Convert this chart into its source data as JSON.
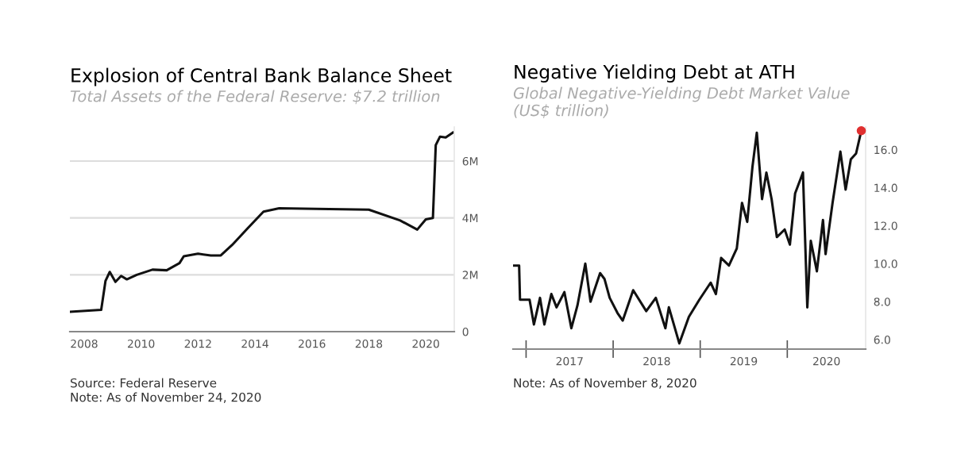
{
  "chart_data": [
    {
      "type": "line",
      "title": "Explosion of Central Bank Balance Sheet",
      "subtitle": "Total Assets of the Federal Reserve: $7.2 trillion",
      "x": [
        2007.5,
        2008.6,
        2008.75,
        2008.9,
        2009.1,
        2009.3,
        2009.5,
        2009.85,
        2010.4,
        2010.9,
        2011.35,
        2011.5,
        2012.0,
        2012.45,
        2012.8,
        2013.2,
        2013.75,
        2014.3,
        2014.85,
        2016.15,
        2018.0,
        2019.1,
        2019.7,
        2020.0,
        2020.25,
        2020.35,
        2020.5,
        2020.7,
        2020.95
      ],
      "series": [
        {
          "color": "#111111",
          "values": [
            0.7,
            0.77,
            1.78,
            2.1,
            1.75,
            1.96,
            1.84,
            2.0,
            2.18,
            2.16,
            2.41,
            2.65,
            2.74,
            2.68,
            2.68,
            3.05,
            3.64,
            4.22,
            4.34,
            4.32,
            4.29,
            3.91,
            3.59,
            3.95,
            4.0,
            6.56,
            6.86,
            6.83,
            7.0
          ]
        }
      ],
      "xlim": [
        2007.5,
        2021
      ],
      "ylim": [
        0,
        7.2
      ],
      "xticks": [
        2008,
        2010,
        2012,
        2014,
        2016,
        2018,
        2020
      ],
      "yticks": [
        0,
        {
          "value": 2,
          "label": "2M"
        },
        {
          "value": 4,
          "label": "4M"
        },
        {
          "value": 6,
          "label": "6M"
        }
      ],
      "grid": "y",
      "annotations": [
        "Source: Federal Reserve",
        "Note: As of November 24, 2020"
      ]
    },
    {
      "type": "line",
      "title": "Negative Yielding Debt at ATH",
      "subtitle": "Global Negative-Yielding Debt Market Value\n(US$ trillion)",
      "x": [
        2016.85,
        2016.92,
        2016.93,
        2017.04,
        2017.09,
        2017.16,
        2017.21,
        2017.29,
        2017.35,
        2017.44,
        2017.52,
        2017.59,
        2017.68,
        2017.74,
        2017.85,
        2017.9,
        2017.96,
        2018.05,
        2018.11,
        2018.23,
        2018.38,
        2018.49,
        2018.6,
        2018.64,
        2018.76,
        2018.87,
        2018.99,
        2019.12,
        2019.18,
        2019.24,
        2019.33,
        2019.42,
        2019.48,
        2019.54,
        2019.6,
        2019.65,
        2019.71,
        2019.76,
        2019.82,
        2019.88,
        2019.97,
        2020.03,
        2020.09,
        2020.18,
        2020.23,
        2020.27,
        2020.34,
        2020.41,
        2020.44,
        2020.52,
        2020.61,
        2020.67,
        2020.73,
        2020.79,
        2020.85
      ],
      "series": [
        {
          "color": "#111111",
          "values": [
            9.9,
            9.9,
            8.1,
            8.1,
            6.8,
            8.2,
            6.8,
            8.4,
            7.7,
            8.5,
            6.6,
            7.8,
            10.0,
            8.0,
            9.5,
            9.2,
            8.2,
            7.4,
            7.0,
            8.6,
            7.5,
            8.2,
            6.6,
            7.7,
            5.8,
            7.2,
            8.1,
            9.0,
            8.4,
            10.3,
            9.9,
            10.8,
            13.2,
            12.2,
            15.1,
            16.9,
            13.4,
            14.8,
            13.4,
            11.4,
            11.8,
            11.0,
            13.7,
            14.8,
            7.7,
            11.2,
            9.6,
            12.3,
            10.5,
            13.2,
            15.9,
            13.9,
            15.5,
            15.8,
            17.0
          ]
        },
        {
          "type": "scatter",
          "color": "#e03030",
          "x": [
            2020.85
          ],
          "values": [
            17.0
          ]
        }
      ],
      "xlim": [
        2016.85,
        2020.9
      ],
      "ylim": [
        5.5,
        17.2
      ],
      "xticks": [
        {
          "value": 2017,
          "label": null
        },
        {
          "value": 2017.5,
          "label": "2017"
        },
        {
          "value": 2018,
          "label": null
        },
        {
          "value": 2018.5,
          "label": "2018"
        },
        {
          "value": 2019,
          "label": null
        },
        {
          "value": 2019.5,
          "label": "2019"
        },
        {
          "value": 2020,
          "label": null
        },
        {
          "value": 2020.45,
          "label": "2020"
        }
      ],
      "yticks": [
        {
          "value": 6,
          "label": "6.0"
        },
        {
          "value": 8,
          "label": "8.0"
        },
        {
          "value": 10,
          "label": "10.0"
        },
        {
          "value": 12,
          "label": "12.0"
        },
        {
          "value": 14,
          "label": "14.0"
        },
        {
          "value": 16,
          "label": "16.0"
        }
      ],
      "annotations": [
        "Note: As of November 8, 2020"
      ]
    }
  ]
}
